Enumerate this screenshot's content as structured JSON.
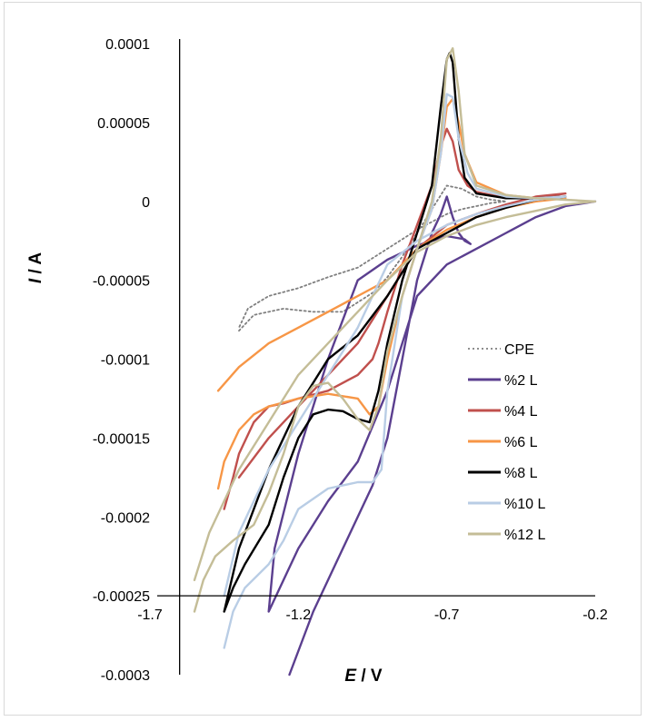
{
  "chart_data": {
    "type": "line",
    "title": "",
    "xlabel_italic": "E",
    "xlabel_unit": " / V",
    "ylabel_italic": "I",
    "ylabel_unit": " / A",
    "xlim": [
      -1.7,
      -0.2
    ],
    "ylim": [
      -0.0003,
      0.0001
    ],
    "x_crosses_y_at": -0.00025,
    "y_crosses_x_at": -1.6,
    "x_ticks": [
      -1.7,
      -1.2,
      -0.7,
      -0.2
    ],
    "x_tick_labels": [
      "-1.7",
      "-1.2",
      "-0.7",
      "-0.2"
    ],
    "y_ticks": [
      0.0001,
      5e-05,
      0,
      -5e-05,
      -0.0001,
      -0.00015,
      -0.0002,
      -0.00025,
      -0.0003
    ],
    "y_tick_labels": [
      "0.0001",
      "0.00005",
      "0",
      "-0.00005",
      "-0.0001",
      "-0.00015",
      "-0.0002",
      "-0.00025",
      "-0.0003"
    ],
    "grid": false,
    "legend_position": "right",
    "series": [
      {
        "name": "CPE",
        "color": "#7f7f7f",
        "dash": true,
        "x": [
          -1.4,
          -1.35,
          -1.25,
          -1.15,
          -1.05,
          -0.95,
          -0.9,
          -0.85,
          -0.8,
          -0.75,
          -0.7,
          -0.65,
          -0.6,
          -0.55,
          -0.5,
          -0.55,
          -0.6,
          -0.65,
          -0.7,
          -0.75,
          -0.8,
          -0.85,
          -0.9,
          -0.95,
          -1.0,
          -1.1,
          -1.2,
          -1.3,
          -1.37,
          -1.4
        ],
        "y": [
          -8.2e-05,
          -7.2e-05,
          -6.8e-05,
          -7e-05,
          -7e-05,
          -5.8e-05,
          -4.8e-05,
          -3.5e-05,
          -2e-05,
          -5e-06,
          1e-05,
          8e-06,
          3e-06,
          1e-06,
          0.0,
          -1e-06,
          -3e-06,
          -5e-06,
          -8e-06,
          -1.3e-05,
          -1.8e-05,
          -2.4e-05,
          -3e-05,
          -3.6e-05,
          -4.2e-05,
          -4.8e-05,
          -5.5e-05,
          -6e-05,
          -6.8e-05,
          -8e-05
        ]
      },
      {
        "name": "%2 L",
        "color": "#5b3f8f",
        "dash": false,
        "x": [
          -1.23,
          -1.15,
          -1.05,
          -0.95,
          -0.9,
          -0.85,
          -0.8,
          -0.75,
          -0.72,
          -0.7,
          -0.68,
          -0.66,
          -0.64,
          -0.62,
          -0.64,
          -0.7,
          -0.8,
          -0.9,
          -1.0,
          -1.1,
          -1.2,
          -1.28,
          -1.3,
          -1.2,
          -1.1,
          -1.0,
          -0.9,
          -0.8,
          -0.7,
          -0.6,
          -0.5,
          -0.4,
          -0.3,
          -0.2
        ],
        "y": [
          -0.0003,
          -0.00026,
          -0.00022,
          -0.00018,
          -0.00015,
          -0.0001,
          -5e-05,
          -2e-05,
          -8e-06,
          3e-06,
          -1e-05,
          -2e-05,
          -2.5e-05,
          -2.7e-05,
          -2.4e-05,
          -2.2e-05,
          -2.8e-05,
          -3.7e-05,
          -5e-05,
          -0.0001,
          -0.00016,
          -0.00022,
          -0.00026,
          -0.00022,
          -0.00019,
          -0.000165,
          -0.00012,
          -6e-05,
          -4e-05,
          -3e-05,
          -2e-05,
          -1e-05,
          -3e-06,
          0.0
        ]
      },
      {
        "name": "%4 L",
        "color": "#c0504d",
        "dash": false,
        "x": [
          -1.45,
          -1.42,
          -1.4,
          -1.35,
          -1.3,
          -1.25,
          -1.2,
          -1.1,
          -1.0,
          -0.95,
          -0.93,
          -0.9,
          -0.85,
          -0.8,
          -0.75,
          -0.72,
          -0.7,
          -0.68,
          -0.66,
          -0.63,
          -0.6,
          -0.5,
          -0.4,
          -0.3,
          -0.4,
          -0.5,
          -0.6,
          -0.7,
          -0.8,
          -0.9,
          -1.0,
          -1.1,
          -1.2,
          -1.3,
          -1.4
        ],
        "y": [
          -0.000195,
          -0.000175,
          -0.00016,
          -0.00014,
          -0.00013,
          -0.000128,
          -0.000125,
          -0.00012,
          -0.00011,
          -0.0001,
          -9e-05,
          -7e-05,
          -4e-05,
          -1.5e-05,
          1e-05,
          3.5e-05,
          4.6e-05,
          3.8e-05,
          2e-05,
          1e-05,
          6e-06,
          2e-06,
          2e-06,
          5e-06,
          3e-06,
          -2e-06,
          -8e-06,
          -1.5e-05,
          -3e-05,
          -6e-05,
          -9e-05,
          -0.00011,
          -0.00013,
          -0.00015,
          -0.000175
        ]
      },
      {
        "name": "%6 L",
        "color": "#f79646",
        "dash": false,
        "x": [
          -1.47,
          -1.45,
          -1.4,
          -1.35,
          -1.3,
          -1.2,
          -1.1,
          -1.0,
          -0.96,
          -0.93,
          -0.9,
          -0.85,
          -0.8,
          -0.75,
          -0.72,
          -0.7,
          -0.68,
          -0.66,
          -0.64,
          -0.6,
          -0.5,
          -0.4,
          -0.3,
          -0.4,
          -0.5,
          -0.6,
          -0.7,
          -0.8,
          -0.9,
          -1.0,
          -1.1,
          -1.2,
          -1.3,
          -1.4,
          -1.47
        ],
        "y": [
          -0.000182,
          -0.000165,
          -0.000145,
          -0.000135,
          -0.00013,
          -0.000125,
          -0.000122,
          -0.000125,
          -0.000135,
          -0.00013,
          -0.0001,
          -6e-05,
          -3e-05,
          -5e-06,
          3e-05,
          6e-05,
          6.5e-05,
          5e-05,
          3e-05,
          1.2e-05,
          4e-06,
          2e-06,
          2e-06,
          0.0,
          -4e-06,
          -1e-05,
          -1.8e-05,
          -3e-05,
          -5e-05,
          -6e-05,
          -7e-05,
          -8e-05,
          -9e-05,
          -0.000105,
          -0.00012
        ]
      },
      {
        "name": "%8 L",
        "color": "#000000",
        "dash": false,
        "x": [
          -1.45,
          -1.42,
          -1.38,
          -1.3,
          -1.25,
          -1.2,
          -1.15,
          -1.1,
          -1.05,
          -1.0,
          -0.96,
          -0.93,
          -0.9,
          -0.85,
          -0.8,
          -0.75,
          -0.72,
          -0.7,
          -0.69,
          -0.68,
          -0.66,
          -0.64,
          -0.6,
          -0.5,
          -0.4,
          -0.3,
          -0.4,
          -0.5,
          -0.6,
          -0.7,
          -0.8,
          -0.9,
          -1.0,
          -1.1,
          -1.2,
          -1.3,
          -1.4,
          -1.45
        ],
        "y": [
          -0.00026,
          -0.000245,
          -0.00023,
          -0.000205,
          -0.000175,
          -0.00015,
          -0.000135,
          -0.000132,
          -0.000133,
          -0.000138,
          -0.00014,
          -0.00012,
          -9e-05,
          -5e-05,
          -2e-05,
          1e-05,
          6e-05,
          9e-05,
          9.4e-05,
          8.8e-05,
          4e-05,
          1.5e-05,
          5e-06,
          2e-06,
          2e-06,
          3e-06,
          1e-06,
          -4e-06,
          -1e-05,
          -2e-05,
          -3e-05,
          -6e-05,
          -8.5e-05,
          -0.0001,
          -0.00013,
          -0.00017,
          -0.00022,
          -0.00026
        ]
      },
      {
        "name": "%10 L",
        "color": "#b9cde5",
        "dash": false,
        "x": [
          -1.45,
          -1.42,
          -1.38,
          -1.3,
          -1.25,
          -1.2,
          -1.1,
          -1.0,
          -0.95,
          -0.92,
          -0.9,
          -0.85,
          -0.8,
          -0.75,
          -0.72,
          -0.7,
          -0.68,
          -0.66,
          -0.63,
          -0.6,
          -0.5,
          -0.4,
          -0.3,
          -0.4,
          -0.5,
          -0.6,
          -0.7,
          -0.8,
          -0.9,
          -1.0,
          -1.1,
          -1.2,
          -1.3,
          -1.4,
          -1.45
        ],
        "y": [
          -0.000283,
          -0.00026,
          -0.000245,
          -0.00023,
          -0.000215,
          -0.000195,
          -0.000182,
          -0.000178,
          -0.000178,
          -0.00017,
          -0.00012,
          -6e-05,
          -3e-05,
          -5e-06,
          3e-05,
          6.8e-05,
          6.6e-05,
          4e-05,
          1.8e-05,
          8e-06,
          3e-06,
          2e-06,
          3e-06,
          1e-06,
          -3e-06,
          -8e-06,
          -1.5e-05,
          -2.5e-05,
          -4e-05,
          -8e-05,
          -0.00011,
          -0.00014,
          -0.00017,
          -0.00021,
          -0.00025
        ]
      },
      {
        "name": "%12 L",
        "color": "#c4bd97",
        "dash": false,
        "x": [
          -1.55,
          -1.52,
          -1.48,
          -1.42,
          -1.35,
          -1.3,
          -1.25,
          -1.2,
          -1.15,
          -1.1,
          -1.05,
          -1.0,
          -0.96,
          -0.93,
          -0.9,
          -0.85,
          -0.8,
          -0.75,
          -0.72,
          -0.7,
          -0.68,
          -0.66,
          -0.64,
          -0.6,
          -0.5,
          -0.4,
          -0.3,
          -0.2,
          -0.3,
          -0.4,
          -0.5,
          -0.6,
          -0.7,
          -0.8,
          -0.9,
          -1.0,
          -1.1,
          -1.2,
          -1.3,
          -1.4,
          -1.5,
          -1.55
        ],
        "y": [
          -0.00026,
          -0.00024,
          -0.000225,
          -0.000215,
          -0.000205,
          -0.000185,
          -0.00016,
          -0.00013,
          -0.000117,
          -0.000115,
          -0.000125,
          -0.000138,
          -0.000145,
          -0.00013,
          -9.5e-05,
          -6e-05,
          -3e-05,
          0.0,
          4e-05,
          9e-05,
          9.7e-05,
          7e-05,
          3e-05,
          1e-05,
          4e-06,
          2e-06,
          1e-06,
          0.0,
          -2e-06,
          -6e-06,
          -1e-05,
          -1.5e-05,
          -2.2e-05,
          -3.2e-05,
          -5e-05,
          -7e-05,
          -9e-05,
          -0.00011,
          -0.00014,
          -0.00017,
          -0.00021,
          -0.00024
        ]
      }
    ]
  }
}
